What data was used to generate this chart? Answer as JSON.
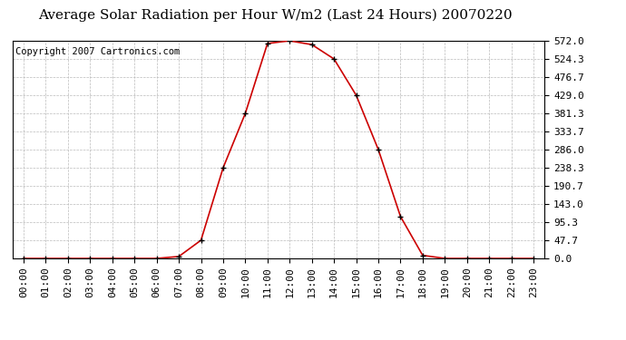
{
  "title": "Average Solar Radiation per Hour W/m2 (Last 24 Hours) 20070220",
  "copyright": "Copyright 2007 Cartronics.com",
  "hours": [
    "00:00",
    "01:00",
    "02:00",
    "03:00",
    "04:00",
    "05:00",
    "06:00",
    "07:00",
    "08:00",
    "09:00",
    "10:00",
    "11:00",
    "12:00",
    "13:00",
    "14:00",
    "15:00",
    "16:00",
    "17:00",
    "18:00",
    "19:00",
    "20:00",
    "21:00",
    "22:00",
    "23:00"
  ],
  "values": [
    0,
    0,
    0,
    0,
    0,
    0,
    0,
    5,
    47.7,
    238.3,
    381.3,
    565,
    572.0,
    562,
    524.3,
    429.0,
    286.0,
    110,
    8,
    0,
    0,
    0,
    0,
    0
  ],
  "yticks": [
    0.0,
    47.7,
    95.3,
    143.0,
    190.7,
    238.3,
    286.0,
    333.7,
    381.3,
    429.0,
    476.7,
    524.3,
    572.0
  ],
  "line_color": "#cc0000",
  "marker_color": "#000000",
  "bg_color": "#ffffff",
  "grid_color": "#bbbbbb",
  "title_fontsize": 11,
  "copyright_fontsize": 7.5,
  "tick_fontsize": 8,
  "ymax": 572.0,
  "ymin": 0.0
}
